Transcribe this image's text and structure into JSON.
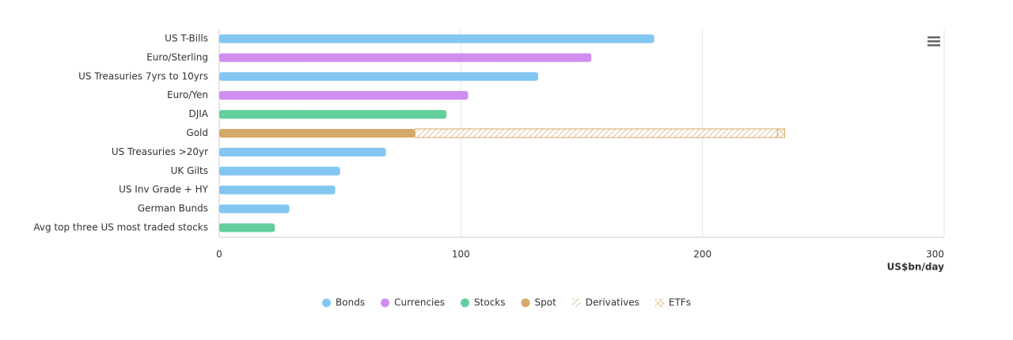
{
  "chart_data": {
    "type": "bar",
    "orientation": "horizontal",
    "stacked": true,
    "categories": [
      "US T-Bills",
      "Euro/Sterling",
      "US Treasuries 7yrs to 10yrs",
      "Euro/Yen",
      "DJIA",
      "Gold",
      "US Treasuries >20yr",
      "UK Gilts",
      "US Inv Grade + HY",
      "German Bunds",
      "Avg top three US most traded stocks"
    ],
    "series": [
      {
        "name": "Bonds",
        "color": "#84c6f2",
        "values": [
          180,
          null,
          132,
          null,
          null,
          null,
          69,
          50,
          48,
          29,
          null
        ]
      },
      {
        "name": "Currencies",
        "color": "#d08ef0",
        "values": [
          null,
          154,
          null,
          103,
          null,
          null,
          null,
          null,
          null,
          null,
          null
        ]
      },
      {
        "name": "Stocks",
        "color": "#62cf9c",
        "values": [
          null,
          null,
          null,
          null,
          94,
          null,
          null,
          null,
          null,
          null,
          23
        ]
      },
      {
        "name": "Spot",
        "color": "#d4aa6a",
        "values": [
          null,
          null,
          null,
          null,
          null,
          81,
          null,
          null,
          null,
          null,
          null
        ]
      },
      {
        "name": "Derivatives",
        "color": "#d4aa6a",
        "pattern": "hatch",
        "values": [
          null,
          null,
          null,
          null,
          null,
          150,
          null,
          null,
          null,
          null,
          null
        ]
      },
      {
        "name": "ETFs",
        "color": "#d4aa6a",
        "pattern": "crosshatch",
        "values": [
          null,
          null,
          null,
          null,
          null,
          3,
          null,
          null,
          null,
          null,
          null
        ]
      }
    ],
    "xlim": [
      0,
      300
    ],
    "xticks": [
      0,
      100,
      200,
      300
    ],
    "xlabel": "US$bn/day",
    "grid": true,
    "legend": "bottom"
  }
}
